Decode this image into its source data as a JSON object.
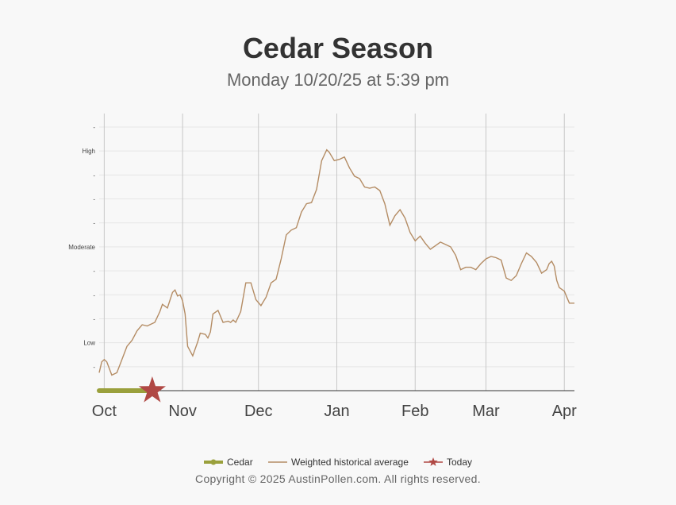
{
  "header": {
    "title": "Cedar Season",
    "subtitle": "Monday 10/20/25 at 5:39 pm"
  },
  "footer": {
    "copyright": "Copyright © 2025 AustinPollen.com.  All rights reserved."
  },
  "colors": {
    "cedar": "#9aa03c",
    "historical": "#b48c64",
    "today": "#b04844",
    "grid": "#c8c8c8"
  },
  "chart_data": {
    "type": "line",
    "x_axis": {
      "range": [
        "2025-09-29",
        "2026-04-05"
      ],
      "ticks": [
        {
          "label": "Oct",
          "date": "2025-10-01"
        },
        {
          "label": "Nov",
          "date": "2025-11-01"
        },
        {
          "label": "Dec",
          "date": "2025-12-01"
        },
        {
          "label": "Jan",
          "date": "2026-01-01"
        },
        {
          "label": "Feb",
          "date": "2026-02-01"
        },
        {
          "label": "Mar",
          "date": "2026-03-01"
        },
        {
          "label": "Apr",
          "date": "2026-04-01"
        }
      ]
    },
    "y_axis": {
      "range": [
        0,
        11
      ],
      "ticks": [
        {
          "value": 1,
          "label": "-"
        },
        {
          "value": 2,
          "label": "Low"
        },
        {
          "value": 3,
          "label": "-"
        },
        {
          "value": 4,
          "label": "-"
        },
        {
          "value": 5,
          "label": "-"
        },
        {
          "value": 6,
          "label": "Moderate"
        },
        {
          "value": 7,
          "label": "-"
        },
        {
          "value": 8,
          "label": "-"
        },
        {
          "value": 9,
          "label": "-"
        },
        {
          "value": 10,
          "label": "High"
        },
        {
          "value": 11,
          "label": "-"
        }
      ]
    },
    "grid": true,
    "legend_position": "bottom",
    "series": [
      {
        "name": "Cedar",
        "points": [
          [
            "2025-09-29",
            0
          ],
          [
            "2025-10-05",
            0
          ],
          [
            "2025-10-10",
            0
          ],
          [
            "2025-10-15",
            0
          ],
          [
            "2025-10-20",
            0
          ]
        ]
      },
      {
        "name": "Weighted historical average",
        "points": [
          [
            "2025-09-29",
            0.75
          ],
          [
            "2025-09-30",
            1.2
          ],
          [
            "2025-10-01",
            1.3
          ],
          [
            "2025-10-02",
            1.2
          ],
          [
            "2025-10-04",
            0.65
          ],
          [
            "2025-10-06",
            0.75
          ],
          [
            "2025-10-08",
            1.3
          ],
          [
            "2025-10-10",
            1.85
          ],
          [
            "2025-10-12",
            2.1
          ],
          [
            "2025-10-14",
            2.5
          ],
          [
            "2025-10-16",
            2.75
          ],
          [
            "2025-10-18",
            2.7
          ],
          [
            "2025-10-20",
            2.8
          ],
          [
            "2025-10-21",
            2.85
          ],
          [
            "2025-10-23",
            3.3
          ],
          [
            "2025-10-24",
            3.6
          ],
          [
            "2025-10-26",
            3.45
          ],
          [
            "2025-10-28",
            4.1
          ],
          [
            "2025-10-29",
            4.2
          ],
          [
            "2025-10-30",
            3.95
          ],
          [
            "2025-10-31",
            4.0
          ],
          [
            "2025-11-01",
            3.75
          ],
          [
            "2025-11-02",
            3.2
          ],
          [
            "2025-11-03",
            1.85
          ],
          [
            "2025-11-05",
            1.45
          ],
          [
            "2025-11-07",
            2.05
          ],
          [
            "2025-11-08",
            2.4
          ],
          [
            "2025-11-10",
            2.35
          ],
          [
            "2025-11-11",
            2.2
          ],
          [
            "2025-11-12",
            2.45
          ],
          [
            "2025-11-13",
            3.2
          ],
          [
            "2025-11-15",
            3.35
          ],
          [
            "2025-11-17",
            2.85
          ],
          [
            "2025-11-19",
            2.9
          ],
          [
            "2025-11-20",
            2.85
          ],
          [
            "2025-11-21",
            2.95
          ],
          [
            "2025-11-22",
            2.85
          ],
          [
            "2025-11-24",
            3.3
          ],
          [
            "2025-11-26",
            4.5
          ],
          [
            "2025-11-28",
            4.5
          ],
          [
            "2025-11-30",
            3.8
          ],
          [
            "2025-12-02",
            3.55
          ],
          [
            "2025-12-04",
            3.9
          ],
          [
            "2025-12-06",
            4.5
          ],
          [
            "2025-12-08",
            4.65
          ],
          [
            "2025-12-10",
            5.5
          ],
          [
            "2025-12-12",
            6.5
          ],
          [
            "2025-12-14",
            6.7
          ],
          [
            "2025-12-16",
            6.8
          ],
          [
            "2025-12-18",
            7.45
          ],
          [
            "2025-12-20",
            7.8
          ],
          [
            "2025-12-22",
            7.85
          ],
          [
            "2025-12-24",
            8.4
          ],
          [
            "2025-12-26",
            9.6
          ],
          [
            "2025-12-28",
            10.05
          ],
          [
            "2025-12-29",
            9.95
          ],
          [
            "2025-12-31",
            9.6
          ],
          [
            "2026-01-02",
            9.65
          ],
          [
            "2026-01-04",
            9.75
          ],
          [
            "2026-01-06",
            9.3
          ],
          [
            "2026-01-08",
            8.95
          ],
          [
            "2026-01-10",
            8.85
          ],
          [
            "2026-01-12",
            8.5
          ],
          [
            "2026-01-14",
            8.45
          ],
          [
            "2026-01-16",
            8.5
          ],
          [
            "2026-01-18",
            8.35
          ],
          [
            "2026-01-20",
            7.8
          ],
          [
            "2026-01-22",
            6.9
          ],
          [
            "2026-01-24",
            7.3
          ],
          [
            "2026-01-26",
            7.55
          ],
          [
            "2026-01-28",
            7.2
          ],
          [
            "2026-01-30",
            6.6
          ],
          [
            "2026-02-01",
            6.25
          ],
          [
            "2026-02-03",
            6.45
          ],
          [
            "2026-02-05",
            6.15
          ],
          [
            "2026-02-07",
            5.9
          ],
          [
            "2026-02-09",
            6.05
          ],
          [
            "2026-02-11",
            6.2
          ],
          [
            "2026-02-13",
            6.1
          ],
          [
            "2026-02-15",
            6.0
          ],
          [
            "2026-02-17",
            5.65
          ],
          [
            "2026-02-19",
            5.05
          ],
          [
            "2026-02-21",
            5.15
          ],
          [
            "2026-02-23",
            5.15
          ],
          [
            "2026-02-25",
            5.05
          ],
          [
            "2026-02-27",
            5.3
          ],
          [
            "2026-03-01",
            5.5
          ],
          [
            "2026-03-03",
            5.6
          ],
          [
            "2026-03-05",
            5.55
          ],
          [
            "2026-03-07",
            5.45
          ],
          [
            "2026-03-09",
            4.7
          ],
          [
            "2026-03-11",
            4.6
          ],
          [
            "2026-03-13",
            4.8
          ],
          [
            "2026-03-15",
            5.3
          ],
          [
            "2026-03-17",
            5.75
          ],
          [
            "2026-03-19",
            5.6
          ],
          [
            "2026-03-21",
            5.35
          ],
          [
            "2026-03-23",
            4.9
          ],
          [
            "2026-03-25",
            5.05
          ],
          [
            "2026-03-26",
            5.3
          ],
          [
            "2026-03-27",
            5.4
          ],
          [
            "2026-03-28",
            5.2
          ],
          [
            "2026-03-29",
            4.6
          ],
          [
            "2026-03-30",
            4.3
          ],
          [
            "2026-04-01",
            4.15
          ],
          [
            "2026-04-02",
            3.9
          ],
          [
            "2026-04-03",
            3.65
          ],
          [
            "2026-04-04",
            3.65
          ],
          [
            "2026-04-05",
            3.65
          ]
        ]
      }
    ],
    "marker": {
      "name": "Today",
      "date": "2025-10-20",
      "value": 0
    }
  }
}
